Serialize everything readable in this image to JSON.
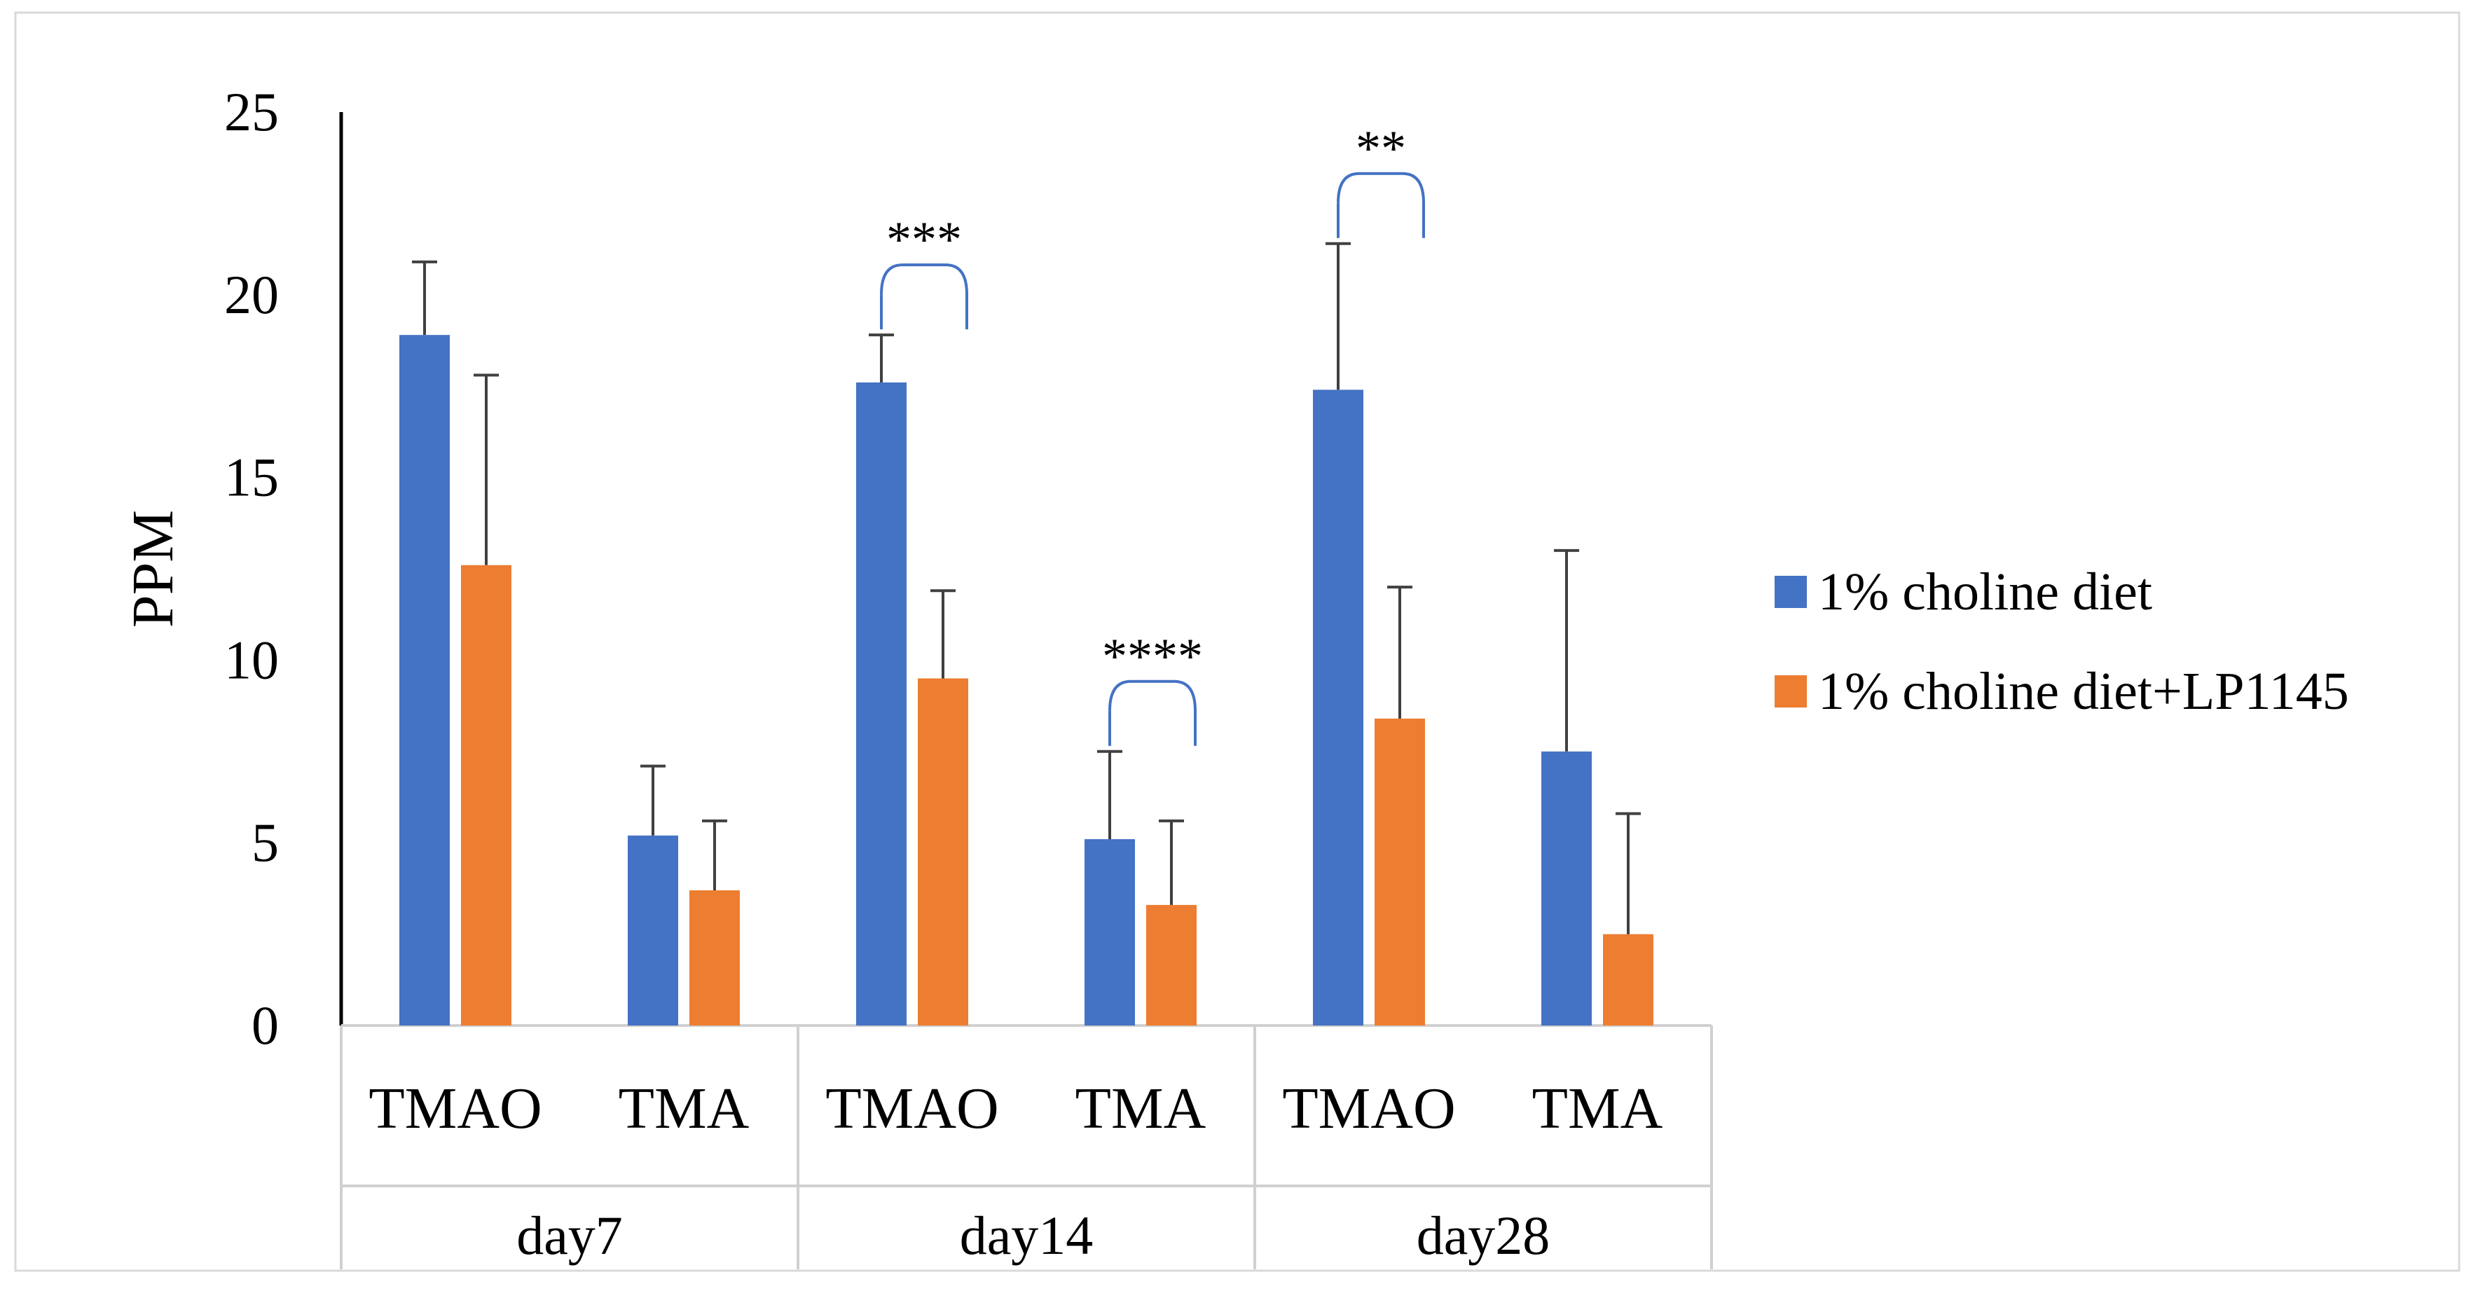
{
  "chart_data": {
    "type": "bar",
    "ylabel": "PPM",
    "xlabel": "",
    "ylim": [
      0,
      25
    ],
    "yticks": [
      0,
      5,
      10,
      15,
      20,
      25
    ],
    "grid": false,
    "legend_position": "right",
    "groups": [
      {
        "label": "day7",
        "categories": [
          "TMAO",
          "TMA"
        ]
      },
      {
        "label": "day14",
        "categories": [
          "TMAO",
          "TMA"
        ]
      },
      {
        "label": "day28",
        "categories": [
          "TMAO",
          "TMA"
        ]
      }
    ],
    "categories": [
      "TMAO",
      "TMA",
      "TMAO",
      "TMA",
      "TMAO",
      "TMA"
    ],
    "series": [
      {
        "name": "1% choline diet",
        "color": "#4472C4",
        "values": [
          18.9,
          5.2,
          17.6,
          5.1,
          17.4,
          7.5
        ],
        "errors": [
          2.0,
          1.9,
          1.3,
          2.4,
          4.0,
          5.5
        ]
      },
      {
        "name": "1% choline diet+LP1145",
        "color": "#ED7D31",
        "values": [
          12.6,
          3.7,
          9.5,
          3.3,
          8.4,
          2.5
        ],
        "errors": [
          5.2,
          1.9,
          2.4,
          2.3,
          3.6,
          3.3
        ]
      }
    ],
    "annotations": [
      {
        "text": "***",
        "category_index": 2
      },
      {
        "text": "****",
        "category_index": 3
      },
      {
        "text": "**",
        "category_index": 4
      }
    ]
  }
}
